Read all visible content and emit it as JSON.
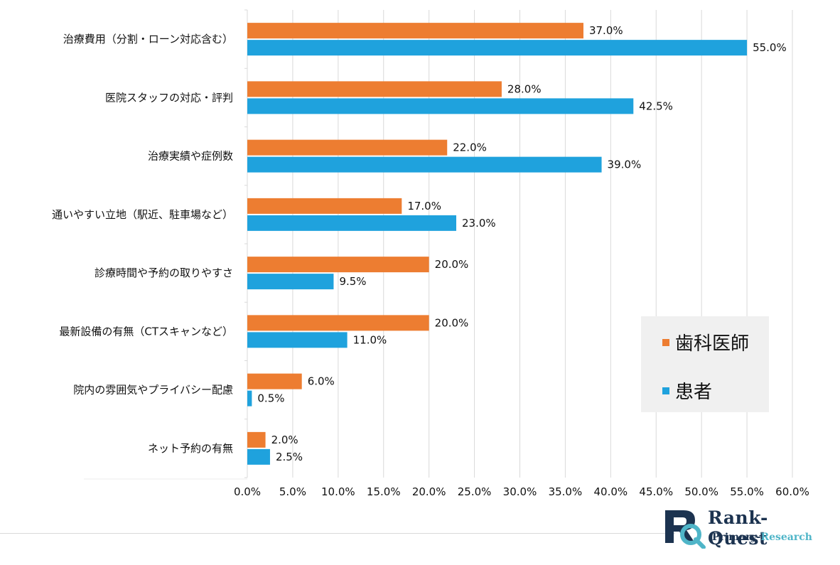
{
  "chart_data": {
    "type": "bar",
    "orientation": "horizontal",
    "categories": [
      "治療費用（分割・ローン対応含む）",
      "医院スタッフの対応・評判",
      "治療実績や症例数",
      "通いやすい立地（駅近、駐車場など）",
      "診療時間や予約の取りやすさ",
      "最新設備の有無（CTスキャンなど）",
      "院内の雰囲気やプライバシー配慮",
      "ネット予約の有無"
    ],
    "series": [
      {
        "name": "歯科医師",
        "color": "#ED7D31",
        "values": [
          37.0,
          28.0,
          22.0,
          17.0,
          20.0,
          20.0,
          6.0,
          2.0
        ],
        "labels": [
          "37.0%",
          "28.0%",
          "22.0%",
          "17.0%",
          "20.0%",
          "20.0%",
          "6.0%",
          "2.0%"
        ]
      },
      {
        "name": "患者",
        "color": "#1FA2DD",
        "values": [
          55.0,
          42.5,
          39.0,
          23.0,
          9.5,
          11.0,
          0.5,
          2.5
        ],
        "labels": [
          "55.0%",
          "42.5%",
          "39.0%",
          "23.0%",
          "9.5%",
          "11.0%",
          "0.5%",
          "2.5%"
        ]
      }
    ],
    "xlim": [
      0,
      60
    ],
    "x_ticks": [
      "0.0%",
      "5.0%",
      "10.0%",
      "15.0%",
      "20.0%",
      "25.0%",
      "30.0%",
      "35.0%",
      "40.0%",
      "45.0%",
      "50.0%",
      "55.0%",
      "60.0%"
    ],
    "grid": "vertical",
    "legend_position": "bottom-right"
  },
  "legend": {
    "items": [
      {
        "label": "歯科医師",
        "color": "#ED7D31"
      },
      {
        "label": "患者",
        "color": "#1FA2DD"
      }
    ]
  },
  "logo": {
    "title": "Rank-Quest",
    "subtitle_a": "Primary-",
    "subtitle_b": "Research"
  }
}
